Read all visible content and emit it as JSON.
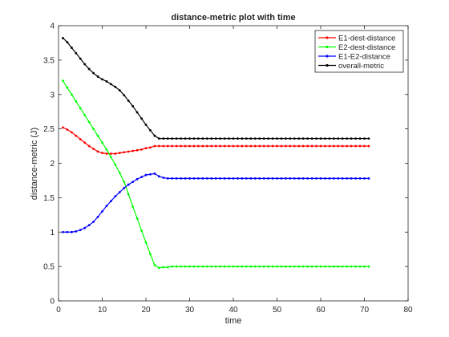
{
  "chart_data": {
    "type": "line",
    "title": "distance-metric plot with time",
    "xlabel": "time",
    "ylabel": "distance-metric (J)",
    "xlim": [
      0,
      80
    ],
    "ylim": [
      0,
      4
    ],
    "xticks": [
      0,
      10,
      20,
      30,
      40,
      50,
      60,
      70,
      80
    ],
    "yticks": [
      0,
      0.5,
      1,
      1.5,
      2,
      2.5,
      3,
      3.5,
      4
    ],
    "xtick_labels": [
      "0",
      "10",
      "20",
      "30",
      "40",
      "50",
      "60",
      "70",
      "80"
    ],
    "ytick_labels": [
      "0",
      "0.5",
      "1",
      "1.5",
      "2",
      "2.5",
      "3",
      "3.5",
      "4"
    ],
    "grid": false,
    "legend_position": "top-right",
    "marker": "point",
    "x_start": 1,
    "x_step": 1,
    "series": [
      {
        "name": "E1-dest-distance",
        "color": "#ff0000",
        "values": [
          2.52,
          2.49,
          2.45,
          2.4,
          2.35,
          2.3,
          2.25,
          2.21,
          2.17,
          2.15,
          2.14,
          2.14,
          2.14,
          2.15,
          2.16,
          2.17,
          2.18,
          2.19,
          2.2,
          2.22,
          2.23,
          2.25,
          2.25,
          2.25,
          2.25,
          2.25,
          2.25,
          2.25,
          2.25,
          2.25,
          2.25,
          2.25,
          2.25,
          2.25,
          2.25,
          2.25,
          2.25,
          2.25,
          2.25,
          2.25,
          2.25,
          2.25,
          2.25,
          2.25,
          2.25,
          2.25,
          2.25,
          2.25,
          2.25,
          2.25,
          2.25,
          2.25,
          2.25,
          2.25,
          2.25,
          2.25,
          2.25,
          2.25,
          2.25,
          2.25,
          2.25,
          2.25,
          2.25,
          2.25,
          2.25,
          2.25,
          2.25,
          2.25,
          2.25,
          2.25,
          2.25
        ]
      },
      {
        "name": "E2-dest-distance",
        "color": "#00ff00",
        "values": [
          3.2,
          3.1,
          3.0,
          2.9,
          2.8,
          2.7,
          2.6,
          2.5,
          2.4,
          2.3,
          2.2,
          2.09,
          1.98,
          1.86,
          1.73,
          1.55,
          1.37,
          1.2,
          1.02,
          0.85,
          0.68,
          0.52,
          0.48,
          0.49,
          0.49,
          0.5,
          0.5,
          0.5,
          0.5,
          0.5,
          0.5,
          0.5,
          0.5,
          0.5,
          0.5,
          0.5,
          0.5,
          0.5,
          0.5,
          0.5,
          0.5,
          0.5,
          0.5,
          0.5,
          0.5,
          0.5,
          0.5,
          0.5,
          0.5,
          0.5,
          0.5,
          0.5,
          0.5,
          0.5,
          0.5,
          0.5,
          0.5,
          0.5,
          0.5,
          0.5,
          0.5,
          0.5,
          0.5,
          0.5,
          0.5,
          0.5,
          0.5,
          0.5,
          0.5,
          0.5,
          0.5
        ]
      },
      {
        "name": "E1-E2-distance",
        "color": "#0000ff",
        "values": [
          1.0,
          1.0,
          1.0,
          1.01,
          1.03,
          1.06,
          1.1,
          1.15,
          1.22,
          1.3,
          1.38,
          1.45,
          1.52,
          1.58,
          1.64,
          1.69,
          1.73,
          1.77,
          1.8,
          1.83,
          1.84,
          1.85,
          1.81,
          1.79,
          1.78,
          1.78,
          1.78,
          1.78,
          1.78,
          1.78,
          1.78,
          1.78,
          1.78,
          1.78,
          1.78,
          1.78,
          1.78,
          1.78,
          1.78,
          1.78,
          1.78,
          1.78,
          1.78,
          1.78,
          1.78,
          1.78,
          1.78,
          1.78,
          1.78,
          1.78,
          1.78,
          1.78,
          1.78,
          1.78,
          1.78,
          1.78,
          1.78,
          1.78,
          1.78,
          1.78,
          1.78,
          1.78,
          1.78,
          1.78,
          1.78,
          1.78,
          1.78,
          1.78,
          1.78,
          1.78,
          1.78
        ]
      },
      {
        "name": "overall-metric",
        "color": "#000000",
        "values": [
          3.82,
          3.76,
          3.68,
          3.6,
          3.52,
          3.44,
          3.37,
          3.31,
          3.26,
          3.22,
          3.19,
          3.15,
          3.11,
          3.06,
          2.99,
          2.91,
          2.83,
          2.74,
          2.65,
          2.56,
          2.48,
          2.4,
          2.36,
          2.36,
          2.36,
          2.36,
          2.36,
          2.36,
          2.36,
          2.36,
          2.36,
          2.36,
          2.36,
          2.36,
          2.36,
          2.36,
          2.36,
          2.36,
          2.36,
          2.36,
          2.36,
          2.36,
          2.36,
          2.36,
          2.36,
          2.36,
          2.36,
          2.36,
          2.36,
          2.36,
          2.36,
          2.36,
          2.36,
          2.36,
          2.36,
          2.36,
          2.36,
          2.36,
          2.36,
          2.36,
          2.36,
          2.36,
          2.36,
          2.36,
          2.36,
          2.36,
          2.36,
          2.36,
          2.36,
          2.36,
          2.36
        ]
      }
    ]
  }
}
